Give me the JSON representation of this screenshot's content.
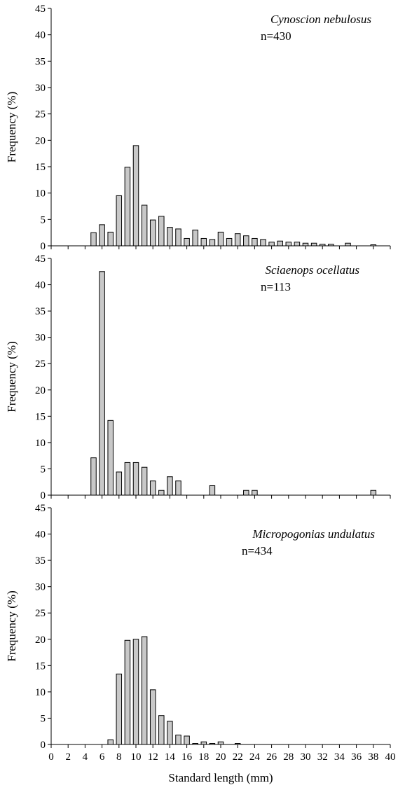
{
  "chart_data": [
    {
      "type": "bar",
      "title": "Cynoscion nebulosus",
      "n_label": "n=430",
      "ylabel": "Frequency (%)",
      "xlabel": "",
      "ylim": [
        0,
        45
      ],
      "yticks": [
        0,
        5,
        10,
        15,
        20,
        25,
        30,
        35,
        40,
        45
      ],
      "xlim": [
        0,
        40
      ],
      "x": [
        5,
        6,
        7,
        8,
        9,
        10,
        11,
        12,
        13,
        14,
        15,
        16,
        17,
        18,
        19,
        20,
        21,
        22,
        23,
        24,
        25,
        26,
        27,
        28,
        29,
        30,
        31,
        32,
        33,
        35,
        38
      ],
      "values": [
        2.5,
        4.0,
        2.6,
        9.5,
        14.9,
        19.0,
        7.7,
        4.9,
        5.6,
        3.5,
        3.2,
        1.4,
        3.0,
        1.4,
        1.2,
        2.6,
        1.4,
        2.3,
        1.9,
        1.4,
        1.2,
        0.7,
        0.9,
        0.7,
        0.7,
        0.5,
        0.5,
        0.3,
        0.3,
        0.5,
        0.2
      ]
    },
    {
      "type": "bar",
      "title": "Sciaenops ocellatus",
      "n_label": "n=113",
      "ylabel": "Frequency (%)",
      "xlabel": "",
      "ylim": [
        0,
        45
      ],
      "yticks": [
        0,
        5,
        10,
        15,
        20,
        25,
        30,
        35,
        40,
        45
      ],
      "xlim": [
        0,
        40
      ],
      "x": [
        5,
        6,
        7,
        8,
        9,
        10,
        11,
        12,
        13,
        14,
        15,
        19,
        23,
        24,
        38
      ],
      "values": [
        7.1,
        42.5,
        14.2,
        4.4,
        6.2,
        6.2,
        5.3,
        2.7,
        0.9,
        3.5,
        2.7,
        1.8,
        0.9,
        0.9,
        0.9
      ]
    },
    {
      "type": "bar",
      "title": "Micropogonias undulatus",
      "n_label": "n=434",
      "ylabel": "Frequency (%)",
      "xlabel": "Standard length (mm)",
      "ylim": [
        0,
        45
      ],
      "yticks": [
        0,
        5,
        10,
        15,
        20,
        25,
        30,
        35,
        40,
        45
      ],
      "xlim": [
        0,
        40
      ],
      "xticks": [
        0,
        2,
        4,
        6,
        8,
        10,
        12,
        14,
        16,
        18,
        20,
        22,
        24,
        26,
        28,
        30,
        32,
        34,
        36,
        38,
        40
      ],
      "x": [
        7,
        8,
        9,
        10,
        11,
        12,
        13,
        14,
        15,
        16,
        17,
        18,
        19,
        20,
        22
      ],
      "values": [
        0.9,
        13.4,
        19.8,
        20.0,
        20.5,
        10.4,
        5.5,
        4.4,
        1.8,
        1.6,
        0.2,
        0.5,
        0.2,
        0.5,
        0.2
      ]
    }
  ]
}
